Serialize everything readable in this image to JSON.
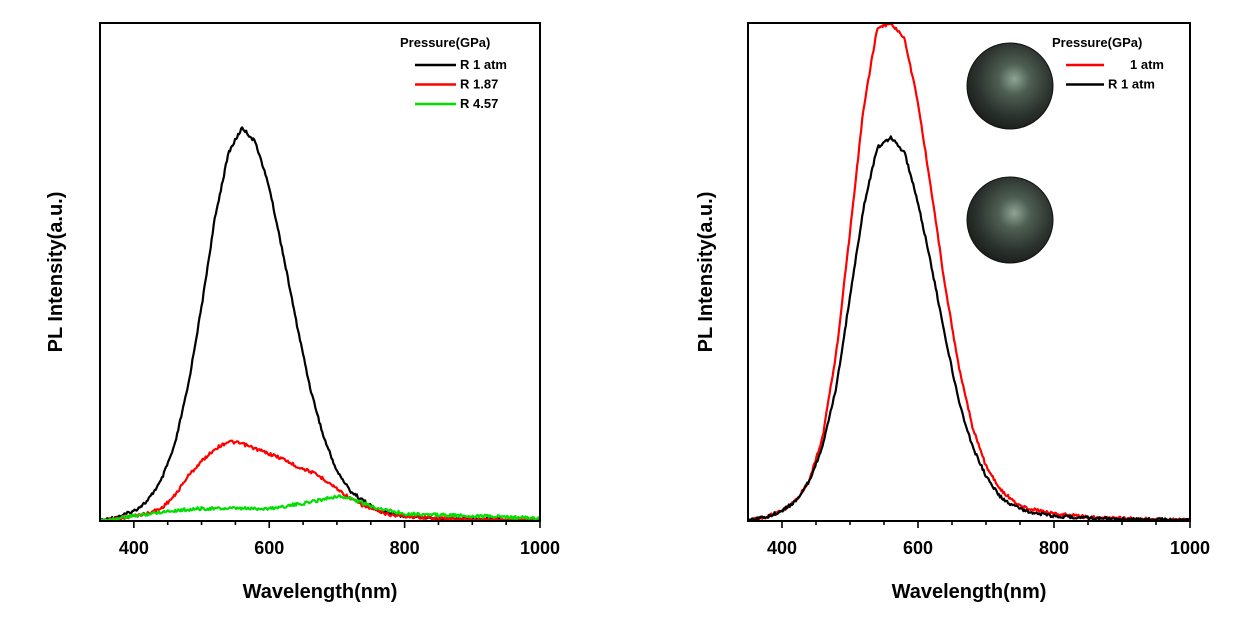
{
  "chart_data": [
    {
      "type": "line",
      "title": "",
      "xlabel": "Wavelength(nm)",
      "ylabel": "PL Intensity(a.u.)",
      "xlim": [
        350,
        1000
      ],
      "ylim": [
        0,
        1.0
      ],
      "xticks": [
        400,
        600,
        800,
        1000
      ],
      "y_tick_labels": false,
      "grid": false,
      "legend": {
        "title": "Pressure(GPa)",
        "placement": "top-right"
      },
      "series": [
        {
          "name": "R 1 atm",
          "color": "#000000",
          "x": [
            350,
            380,
            400,
            420,
            440,
            460,
            480,
            500,
            520,
            540,
            560,
            580,
            600,
            620,
            640,
            660,
            680,
            700,
            720,
            740,
            760,
            780,
            800,
            850,
            900,
            950,
            1000
          ],
          "y": [
            0.0,
            0.01,
            0.02,
            0.04,
            0.08,
            0.15,
            0.27,
            0.43,
            0.61,
            0.74,
            0.79,
            0.76,
            0.67,
            0.54,
            0.4,
            0.27,
            0.17,
            0.1,
            0.06,
            0.04,
            0.02,
            0.015,
            0.01,
            0.006,
            0.004,
            0.003,
            0.002
          ]
        },
        {
          "name": "R 1.87",
          "color": "#ff0000",
          "x": [
            350,
            400,
            420,
            440,
            460,
            480,
            500,
            520,
            540,
            560,
            580,
            600,
            620,
            640,
            660,
            680,
            700,
            720,
            740,
            760,
            780,
            800,
            850,
            900,
            950,
            1000
          ],
          "y": [
            0.0,
            0.01,
            0.015,
            0.025,
            0.05,
            0.09,
            0.12,
            0.145,
            0.16,
            0.155,
            0.145,
            0.135,
            0.125,
            0.11,
            0.1,
            0.085,
            0.065,
            0.045,
            0.03,
            0.02,
            0.012,
            0.01,
            0.005,
            0.003,
            0.002,
            0.001
          ]
        },
        {
          "name": "R 4.57",
          "color": "#00e000",
          "x": [
            350,
            400,
            450,
            500,
            550,
            600,
            650,
            700,
            720,
            750,
            780,
            800,
            850,
            900,
            950,
            1000
          ],
          "y": [
            0.0,
            0.01,
            0.02,
            0.025,
            0.025,
            0.025,
            0.035,
            0.05,
            0.045,
            0.03,
            0.02,
            0.015,
            0.012,
            0.01,
            0.008,
            0.005
          ]
        }
      ]
    },
    {
      "type": "line",
      "title": "",
      "xlabel": "Wavelength(nm)",
      "ylabel": "PL Intensity(a.u.)",
      "xlim": [
        350,
        1000
      ],
      "ylim": [
        0,
        1.0
      ],
      "xticks": [
        400,
        600,
        800,
        1000
      ],
      "y_tick_labels": false,
      "grid": false,
      "legend": {
        "title": "Pressure(GPa)",
        "placement": "top-right"
      },
      "inset_images": [
        "sample-photo-1-atm",
        "sample-photo-released"
      ],
      "series": [
        {
          "name": "1 atm",
          "label_indent": true,
          "color": "#ff0000",
          "x": [
            350,
            380,
            400,
            420,
            440,
            460,
            480,
            500,
            520,
            540,
            560,
            580,
            600,
            620,
            640,
            660,
            680,
            700,
            720,
            740,
            760,
            780,
            800,
            850,
            900,
            950,
            1000
          ],
          "y": [
            0.0,
            0.01,
            0.02,
            0.04,
            0.08,
            0.17,
            0.34,
            0.58,
            0.83,
            0.99,
            1.0,
            0.97,
            0.84,
            0.66,
            0.47,
            0.31,
            0.19,
            0.11,
            0.065,
            0.04,
            0.025,
            0.02,
            0.015,
            0.008,
            0.005,
            0.003,
            0.002
          ]
        },
        {
          "name": "R 1 atm",
          "label_indent": false,
          "color": "#000000",
          "x": [
            350,
            380,
            400,
            420,
            440,
            460,
            480,
            500,
            520,
            540,
            560,
            580,
            600,
            620,
            640,
            660,
            680,
            700,
            720,
            740,
            760,
            780,
            800,
            850,
            900,
            950,
            1000
          ],
          "y": [
            0.0,
            0.01,
            0.02,
            0.04,
            0.08,
            0.15,
            0.27,
            0.45,
            0.63,
            0.75,
            0.77,
            0.74,
            0.64,
            0.51,
            0.37,
            0.24,
            0.15,
            0.09,
            0.05,
            0.03,
            0.02,
            0.015,
            0.01,
            0.006,
            0.004,
            0.003,
            0.002
          ]
        }
      ]
    }
  ]
}
